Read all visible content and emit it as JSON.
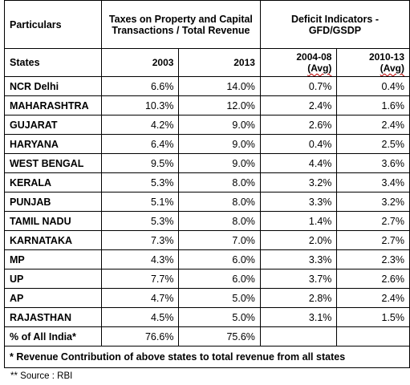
{
  "header": {
    "particulars": "Particulars",
    "taxes_group": "Taxes on Property and Capital Transactions / Total Revenue",
    "deficit_group": "Deficit Indicators - GFD/GSDP",
    "states": "States",
    "y2003": "2003",
    "y2013": "2013",
    "p1_years": "2004-08",
    "p2_years": "2010-13",
    "avg": "(Avg)"
  },
  "rows": [
    {
      "state": "NCR Delhi",
      "t2003": "6.6%",
      "t2013": "14.0%",
      "d1": "0.7%",
      "d2": "0.4%"
    },
    {
      "state": "MAHARASHTRA",
      "t2003": "10.3%",
      "t2013": "12.0%",
      "d1": "2.4%",
      "d2": "1.6%"
    },
    {
      "state": "GUJARAT",
      "t2003": "4.2%",
      "t2013": "9.0%",
      "d1": "2.6%",
      "d2": "2.4%"
    },
    {
      "state": "HARYANA",
      "t2003": "6.4%",
      "t2013": "9.0%",
      "d1": "0.4%",
      "d2": "2.5%"
    },
    {
      "state": "WEST BENGAL",
      "t2003": "9.5%",
      "t2013": "9.0%",
      "d1": "4.4%",
      "d2": "3.6%"
    },
    {
      "state": "KERALA",
      "t2003": "5.3%",
      "t2013": "8.0%",
      "d1": "3.2%",
      "d2": "3.4%"
    },
    {
      "state": "PUNJAB",
      "t2003": "5.1%",
      "t2013": "8.0%",
      "d1": "3.3%",
      "d2": "3.2%"
    },
    {
      "state": "TAMIL NADU",
      "t2003": "5.3%",
      "t2013": "8.0%",
      "d1": "1.4%",
      "d2": "2.7%"
    },
    {
      "state": "KARNATAKA",
      "t2003": "7.3%",
      "t2013": "7.0%",
      "d1": "2.0%",
      "d2": "2.7%"
    },
    {
      "state": "MP",
      "t2003": "4.3%",
      "t2013": "6.0%",
      "d1": "3.3%",
      "d2": "2.3%"
    },
    {
      "state": "UP",
      "t2003": "7.7%",
      "t2013": "6.0%",
      "d1": "3.7%",
      "d2": "2.6%"
    },
    {
      "state": "AP",
      "t2003": "4.7%",
      "t2013": "5.0%",
      "d1": "2.8%",
      "d2": "2.4%"
    },
    {
      "state": "RAJASTHAN",
      "t2003": "4.5%",
      "t2013": "5.0%",
      "d1": "3.1%",
      "d2": "1.5%"
    },
    {
      "state": "% of All India*",
      "t2003": "76.6%",
      "t2013": "75.6%",
      "d1": "",
      "d2": ""
    }
  ],
  "footnote": "* Revenue Contribution of above states to total revenue from all states",
  "source": "** Source : RBI"
}
